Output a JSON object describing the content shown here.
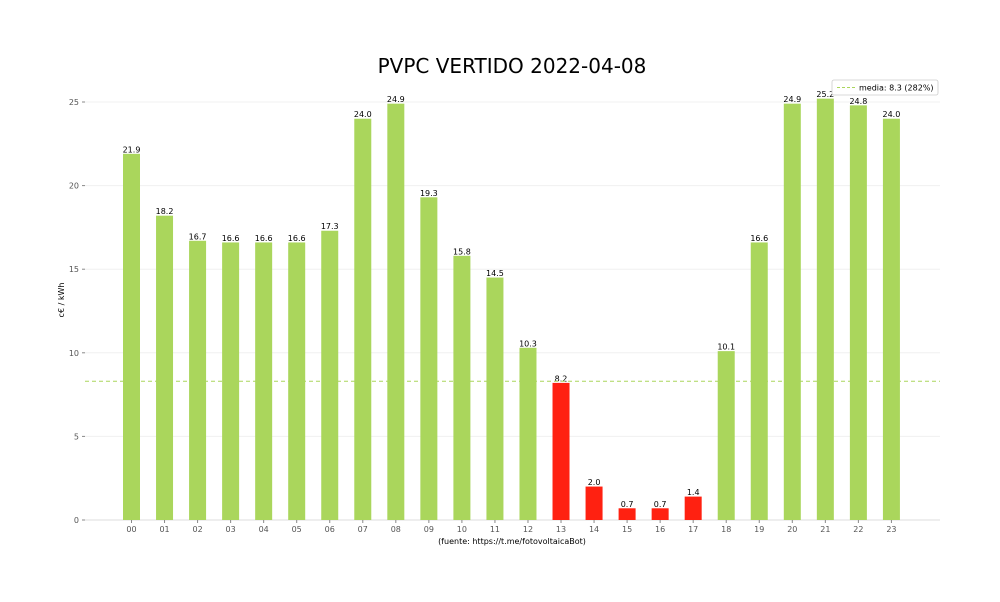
{
  "chart_data": {
    "type": "bar",
    "title": "PVPC VERTIDO 2022-04-08",
    "xlabel": "(fuente: https://t.me/fotovoltaicaBot)",
    "ylabel": "c€ / kWh",
    "categories": [
      "00",
      "01",
      "02",
      "03",
      "04",
      "05",
      "06",
      "07",
      "08",
      "09",
      "10",
      "11",
      "12",
      "13",
      "14",
      "15",
      "16",
      "17",
      "18",
      "19",
      "20",
      "21",
      "22",
      "23"
    ],
    "values": [
      21.9,
      18.2,
      16.7,
      16.6,
      16.6,
      16.6,
      17.3,
      24.0,
      24.9,
      19.3,
      15.8,
      14.5,
      10.3,
      8.2,
      2.0,
      0.7,
      0.7,
      1.4,
      10.1,
      16.6,
      24.9,
      25.2,
      24.8,
      24.0
    ],
    "value_labels": [
      "21.9",
      "18.2",
      "16.7",
      "16.6",
      "16.6",
      "16.6",
      "17.3",
      "24.0",
      "24.9",
      "19.3",
      "15.8",
      "14.5",
      "10.3",
      "8.2",
      "2.0",
      "0.7",
      "0.7",
      "1.4",
      "10.1",
      "16.6",
      "24.9",
      "25.2",
      "24.8",
      "24.0"
    ],
    "bar_colors": [
      "#aad65c",
      "#aad65c",
      "#aad65c",
      "#aad65c",
      "#aad65c",
      "#aad65c",
      "#aad65c",
      "#aad65c",
      "#aad65c",
      "#aad65c",
      "#aad65c",
      "#aad65c",
      "#aad65c",
      "#ff2111",
      "#ff2111",
      "#ff2111",
      "#ff2111",
      "#ff2111",
      "#aad65c",
      "#aad65c",
      "#aad65c",
      "#aad65c",
      "#aad65c",
      "#aad65c"
    ],
    "yticks": [
      0,
      5,
      10,
      15,
      20,
      25
    ],
    "ytick_labels": [
      "0",
      "5",
      "10",
      "15",
      "20",
      "25"
    ],
    "ylim": [
      0,
      26.5
    ],
    "reference_line": {
      "value": 8.3,
      "label": "media: 8.3 (282%)",
      "color": "#aad65c",
      "style": "dashed"
    },
    "grid": "horizontal",
    "legend": "top-right"
  }
}
